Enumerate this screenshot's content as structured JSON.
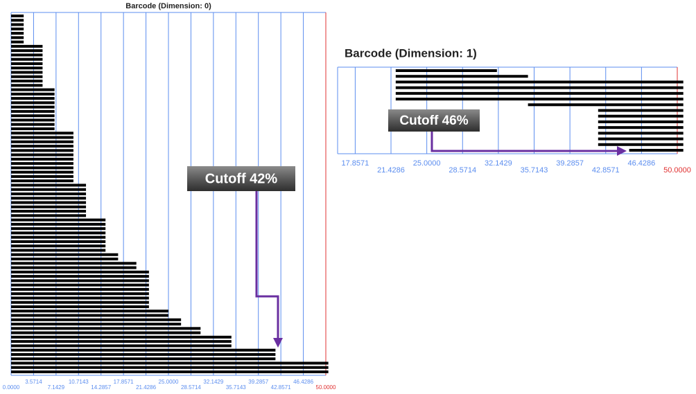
{
  "chart_data": [
    {
      "type": "barcode",
      "title": "Barcode (Dimension: 0)",
      "annotation": "Cutoff 42%",
      "xlim": [
        0,
        50
      ],
      "xticks": [
        {
          "value": 0,
          "label": "0.0000"
        },
        {
          "value": 3.5714,
          "label": "3.5714"
        },
        {
          "value": 7.1429,
          "label": "7.1429"
        },
        {
          "value": 10.7143,
          "label": "10.7143"
        },
        {
          "value": 14.2857,
          "label": "14.2857"
        },
        {
          "value": 17.8571,
          "label": "17.8571"
        },
        {
          "value": 21.4286,
          "label": "21.4286"
        },
        {
          "value": 25,
          "label": "25.0000"
        },
        {
          "value": 28.5714,
          "label": "28.5714"
        },
        {
          "value": 32.1429,
          "label": "32.1429"
        },
        {
          "value": 35.7143,
          "label": "35.7143"
        },
        {
          "value": 39.2857,
          "label": "39.2857"
        },
        {
          "value": 42.8571,
          "label": "42.8571"
        },
        {
          "value": 46.4286,
          "label": "46.4286"
        },
        {
          "value": 50,
          "label": "50.0000"
        }
      ],
      "grid": true,
      "grid_color": "#5b8def",
      "limit_color": "#e03030",
      "bar_color": "#000000",
      "starts": [
        0,
        0,
        0,
        0,
        0,
        0,
        0,
        0,
        0,
        0,
        0,
        0,
        0,
        0,
        0,
        0,
        0,
        0,
        0,
        0,
        0,
        0,
        0,
        0,
        0,
        0,
        0,
        0,
        0,
        0,
        0,
        0,
        0,
        0,
        0,
        0,
        0,
        0,
        0,
        0,
        0,
        0,
        0,
        0,
        0,
        0,
        0,
        0,
        0,
        0,
        0,
        0,
        0,
        0,
        0,
        0,
        0,
        0,
        0,
        0,
        0,
        0,
        0,
        0,
        0,
        0,
        0,
        0,
        0,
        0,
        0,
        0,
        0,
        0,
        0,
        0,
        0,
        0,
        0,
        0,
        0,
        0,
        0
      ],
      "ends": [
        2.0,
        2.0,
        2.0,
        2.0,
        2.0,
        2.0,
        2.0,
        5.0,
        5.0,
        5.0,
        5.0,
        5.0,
        5.0,
        5.0,
        5.0,
        5.0,
        5.0,
        6.9,
        6.9,
        6.9,
        6.9,
        6.9,
        6.9,
        6.9,
        6.9,
        6.9,
        6.9,
        9.9,
        9.9,
        9.9,
        9.9,
        9.9,
        9.9,
        9.9,
        9.9,
        9.9,
        9.9,
        9.9,
        9.9,
        11.9,
        11.9,
        11.9,
        11.9,
        11.9,
        11.9,
        11.9,
        11.9,
        15.0,
        15.0,
        15.0,
        15.0,
        15.0,
        15.0,
        15.0,
        15.0,
        17.0,
        17.0,
        19.9,
        19.9,
        21.9,
        21.9,
        21.9,
        21.9,
        21.9,
        21.9,
        21.9,
        21.9,
        21.9,
        25.0,
        25.0,
        27.0,
        27.0,
        30.1,
        30.1,
        35.0,
        35.0,
        35.0,
        42.0,
        42.0,
        42.0,
        50.4,
        50.4,
        50.4
      ]
    },
    {
      "type": "barcode",
      "title": "Barcode (Dimension: 1)",
      "annotation": "Cutoff 46%",
      "xlim": [
        16.1,
        50
      ],
      "xticks": [
        {
          "value": 17.8571,
          "label": "17.8571"
        },
        {
          "value": 21.4286,
          "label": "21.4286"
        },
        {
          "value": 25,
          "label": "25.0000"
        },
        {
          "value": 28.5714,
          "label": "28.5714"
        },
        {
          "value": 32.1429,
          "label": "32.1429"
        },
        {
          "value": 35.7143,
          "label": "35.7143"
        },
        {
          "value": 39.2857,
          "label": "39.2857"
        },
        {
          "value": 42.8571,
          "label": "42.8571"
        },
        {
          "value": 46.4286,
          "label": "46.4286"
        },
        {
          "value": 50,
          "label": "50.0000"
        }
      ],
      "grid": true,
      "grid_color": "#5b8def",
      "limit_color": "#e03030",
      "bar_color": "#000000",
      "starts": [
        21.9,
        21.9,
        21.9,
        21.9,
        21.9,
        21.9,
        35.1,
        42.1,
        42.1,
        42.1,
        42.1,
        42.1,
        42.1,
        42.1,
        45.2
      ],
      "ends": [
        32.0,
        35.1,
        50.6,
        50.6,
        50.6,
        50.6,
        50.6,
        50.6,
        50.6,
        50.6,
        50.6,
        50.6,
        50.6,
        50.6,
        50.6
      ]
    }
  ]
}
